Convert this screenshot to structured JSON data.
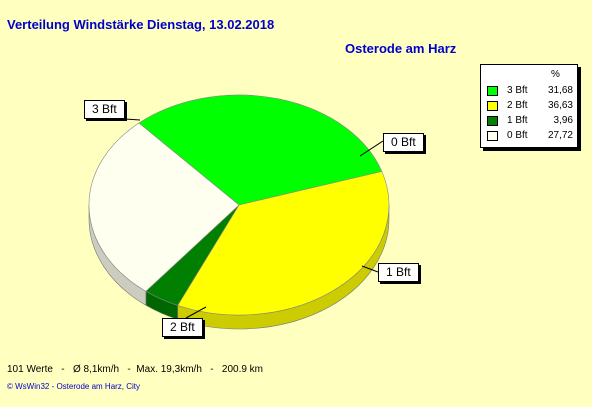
{
  "title": "Verteilung Windstärke  Dienstag, 13.02.2018",
  "location": "Osterode am Harz",
  "legend_header": "%",
  "chart_data": {
    "type": "pie",
    "slices": [
      {
        "label": "3 Bft",
        "value": 31.68,
        "value_text": "31,68",
        "color": "#00FF00"
      },
      {
        "label": "2 Bft",
        "value": 36.63,
        "value_text": "36,63",
        "color": "#FFFF00"
      },
      {
        "label": "1 Bft",
        "value": 3.96,
        "value_text": "3,96",
        "color": "#007F00"
      },
      {
        "label": "0 Bft",
        "value": 27.72,
        "value_text": "27,72",
        "color": "#FFFFF0"
      }
    ]
  },
  "stats": "101 Werte   -   Ø 8,1km/h   -  Max. 19,3km/h   -   200.9 km",
  "credit": "© WsWin32  -  Osterode am Harz, City"
}
